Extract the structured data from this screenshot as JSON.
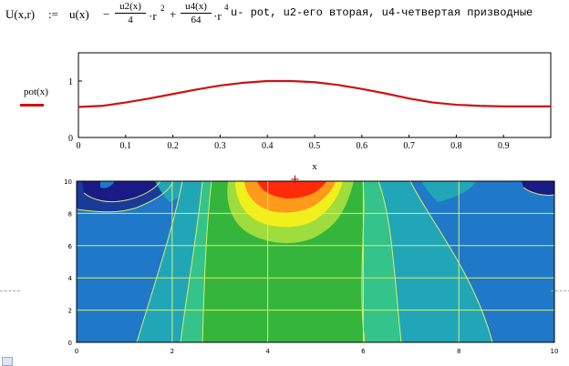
{
  "formula": {
    "lhs": "U(x,r)",
    "assign": ":=",
    "u": "u(x)",
    "minus": "−",
    "plus": "+",
    "frac1_num": "u2(x)",
    "frac1_den": "4",
    "r_term1": "·r",
    "pow1": "2",
    "frac2_num": "u4(x)",
    "frac2_den": "64",
    "r_term2": "·r",
    "pow2": "4"
  },
  "comment": "u- pot, u2-его вторая, u4-четвертая призводные",
  "line_plot": {
    "legend_label": "pot(x)",
    "x_axis_label": "x",
    "y_ticks": [
      "0",
      "1"
    ],
    "x_ticks": [
      "0",
      "0.1",
      "0.2",
      "0.3",
      "0.4",
      "0.5",
      "0.6",
      "0.7",
      "0.8",
      "0.9"
    ],
    "series_color": "#cc1111"
  },
  "contour_plot": {
    "x_ticks": [
      "0",
      "2",
      "4",
      "6",
      "8",
      "10"
    ],
    "y_ticks": [
      "0",
      "2",
      "4",
      "6",
      "8",
      "10"
    ],
    "marker_glyph": "+"
  },
  "chart_data": [
    {
      "type": "line",
      "title": "",
      "xlabel": "x",
      "ylabel": "",
      "xlim": [
        0,
        1
      ],
      "ylim": [
        0,
        1.5
      ],
      "series": [
        {
          "name": "pot(x)",
          "x": [
            0,
            0.05,
            0.1,
            0.15,
            0.2,
            0.25,
            0.3,
            0.35,
            0.4,
            0.45,
            0.5,
            0.55,
            0.6,
            0.65,
            0.7,
            0.75,
            0.8,
            0.85,
            0.9,
            0.95,
            1.0
          ],
          "y": [
            0.54,
            0.56,
            0.62,
            0.69,
            0.77,
            0.85,
            0.92,
            0.97,
            1.0,
            1.0,
            0.98,
            0.93,
            0.86,
            0.78,
            0.69,
            0.62,
            0.58,
            0.56,
            0.55,
            0.55,
            0.55
          ]
        }
      ]
    },
    {
      "type": "heatmap",
      "title": "",
      "xlim": [
        0,
        10
      ],
      "ylim": [
        0,
        10
      ],
      "colors": [
        "#1f78c8",
        "#21a6b8",
        "#34c38a",
        "#35b53c",
        "#9fdc3d",
        "#f1f01a",
        "#ff9a1a",
        "#ff2a0a",
        "#1a1a86"
      ]
    }
  ]
}
